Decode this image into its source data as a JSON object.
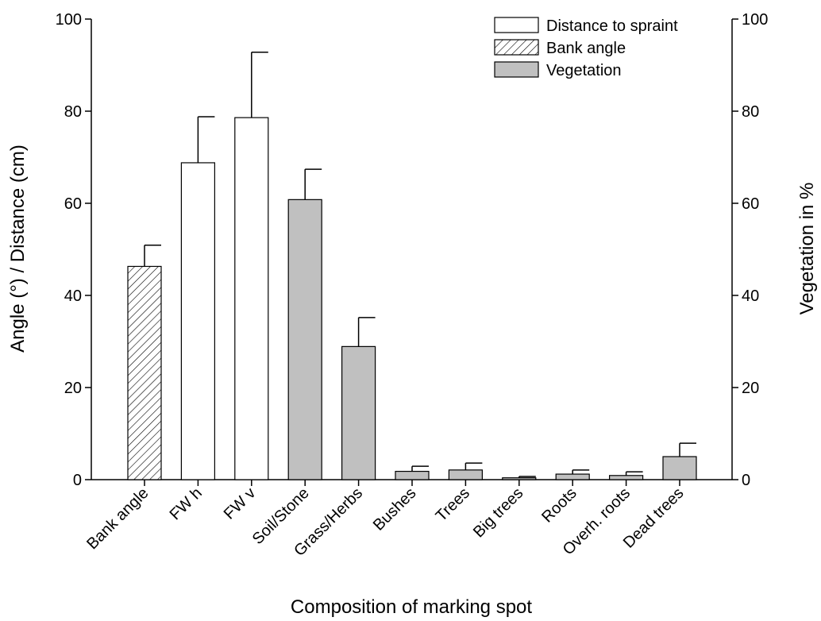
{
  "chart_data": {
    "type": "bar",
    "title": "",
    "xlabel": "Composition of marking spot",
    "ylabel_left": "Angle (°) / Distance (cm)",
    "ylabel_right": "Vegetation in %",
    "ylim_left": [
      0,
      100
    ],
    "ylim_right": [
      0,
      100
    ],
    "yticks_left": [
      0,
      20,
      40,
      60,
      80,
      100
    ],
    "yticks_right": [
      0,
      20,
      40,
      60,
      80,
      100
    ],
    "grid": false,
    "legend_position": "top-right",
    "legend": [
      {
        "label": "Distance to spraint",
        "style": "open"
      },
      {
        "label": "Bank angle",
        "style": "hatched"
      },
      {
        "label": "Vegetation",
        "style": "grey"
      }
    ],
    "bars": [
      {
        "category": "Bank angle",
        "value": 46.3,
        "error": 4.6,
        "style": "hatched",
        "axis": "left"
      },
      {
        "category": "FW h",
        "value": 68.8,
        "error": 10.0,
        "style": "open",
        "axis": "left"
      },
      {
        "category": "FW v",
        "value": 78.6,
        "error": 14.2,
        "style": "open",
        "axis": "left"
      },
      {
        "category": "Soil/Stone",
        "value": 60.8,
        "error": 6.6,
        "style": "grey",
        "axis": "right"
      },
      {
        "category": "Grass/Herbs",
        "value": 28.9,
        "error": 6.3,
        "style": "grey",
        "axis": "right"
      },
      {
        "category": "Bushes",
        "value": 1.8,
        "error": 1.1,
        "style": "grey",
        "axis": "right"
      },
      {
        "category": "Trees",
        "value": 2.1,
        "error": 1.5,
        "style": "grey",
        "axis": "right"
      },
      {
        "category": "Big trees",
        "value": 0.4,
        "error": 0.3,
        "style": "grey",
        "axis": "right"
      },
      {
        "category": "Roots",
        "value": 1.2,
        "error": 0.9,
        "style": "grey",
        "axis": "right"
      },
      {
        "category": "Overh. roots",
        "value": 0.9,
        "error": 0.8,
        "style": "grey",
        "axis": "right"
      },
      {
        "category": "Dead trees",
        "value": 5.0,
        "error": 2.9,
        "style": "grey",
        "axis": "right"
      }
    ],
    "colors": {
      "open": "#ffffff",
      "grey": "#c0c0c0",
      "hatched": "#ffffff",
      "stroke": "#000000"
    }
  }
}
